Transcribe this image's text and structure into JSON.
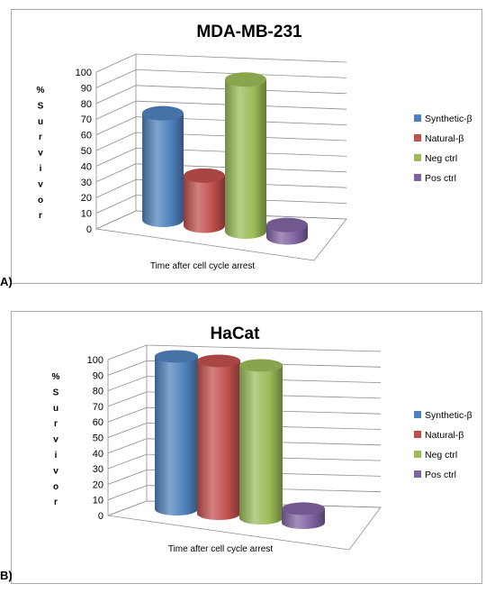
{
  "chart_data": [
    {
      "panel_label": "A)",
      "type": "bar",
      "style": "3d-cylinder",
      "title": "MDA-MB-231",
      "ylabel": "% Survivor",
      "xlabel": "Time after cell cycle arrest",
      "ylim": [
        0,
        100
      ],
      "yticks": [
        "0",
        "10",
        "20",
        "30",
        "40",
        "50",
        "60",
        "70",
        "80",
        "90",
        "100"
      ],
      "grid": true,
      "legend_position": "right",
      "series": [
        {
          "name": "Synthetic-β",
          "color": "#4f81bd",
          "values": [
            68
          ]
        },
        {
          "name": "Natural-β",
          "color": "#c0504d",
          "values": [
            32
          ]
        },
        {
          "name": "Neg ctrl",
          "color": "#9bbb59",
          "values": [
            97
          ]
        },
        {
          "name": "Pos ctrl",
          "color": "#8064a2",
          "values": [
            8
          ]
        }
      ]
    },
    {
      "panel_label": "B)",
      "type": "bar",
      "style": "3d-cylinder",
      "title": "HaCat",
      "ylabel": "% Survivor",
      "xlabel": "Time after cell cycle arrest",
      "ylim": [
        0,
        100
      ],
      "yticks": [
        "0",
        "10",
        "20",
        "30",
        "40",
        "50",
        "60",
        "70",
        "80",
        "90",
        "100"
      ],
      "grid": true,
      "legend_position": "right",
      "series": [
        {
          "name": "Synthetic-β",
          "color": "#4f81bd",
          "values": [
            98
          ]
        },
        {
          "name": "Natural-β",
          "color": "#c0504d",
          "values": [
            98
          ]
        },
        {
          "name": "Neg ctrl",
          "color": "#9bbb59",
          "values": [
            98
          ]
        },
        {
          "name": "Pos ctrl",
          "color": "#8064a2",
          "values": [
            9
          ]
        }
      ]
    }
  ]
}
